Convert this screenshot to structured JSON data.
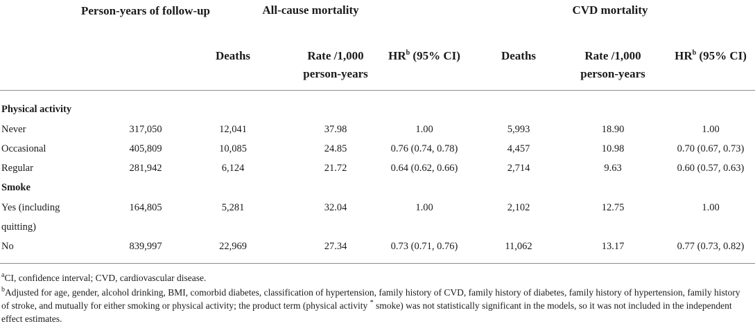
{
  "headers": {
    "person_years": "Person-years of follow-up",
    "all_cause": "All-cause mortality",
    "cvd": "CVD mortality",
    "deaths": "Deaths",
    "rate": "Rate /1,000 person-years",
    "hr": "HR",
    "hr_sup": "b",
    "hr_ci": " (95% CI)"
  },
  "sections": [
    {
      "title": "Physical activity",
      "rows": [
        {
          "label": "Never",
          "py": "317,050",
          "ac_deaths": "12,041",
          "ac_rate": "37.98",
          "ac_hr": "1.00",
          "cvd_deaths": "5,993",
          "cvd_rate": "18.90",
          "cvd_hr": "1.00"
        },
        {
          "label": "Occasional",
          "py": "405,809",
          "ac_deaths": "10,085",
          "ac_rate": "24.85",
          "ac_hr": "0.76 (0.74, 0.78)",
          "cvd_deaths": "4,457",
          "cvd_rate": "10.98",
          "cvd_hr": "0.70 (0.67, 0.73)"
        },
        {
          "label": "Regular",
          "py": "281,942",
          "ac_deaths": "6,124",
          "ac_rate": "21.72",
          "ac_hr": "0.64 (0.62, 0.66)",
          "cvd_deaths": "2,714",
          "cvd_rate": "9.63",
          "cvd_hr": "0.60 (0.57, 0.63)"
        }
      ]
    },
    {
      "title": "Smoke",
      "rows": [
        {
          "label": "Yes (including",
          "label2": "quitting)",
          "py": "164,805",
          "ac_deaths": "5,281",
          "ac_rate": "32.04",
          "ac_hr": "1.00",
          "cvd_deaths": "2,102",
          "cvd_rate": "12.75",
          "cvd_hr": "1.00"
        },
        {
          "label": "No",
          "py": "839,997",
          "ac_deaths": "22,969",
          "ac_rate": "27.34",
          "ac_hr": "0.73 (0.71, 0.76)",
          "cvd_deaths": "11,062",
          "cvd_rate": "13.17",
          "cvd_hr": "0.77 (0.73, 0.82)"
        }
      ]
    }
  ],
  "footnotes": {
    "a_mark": "a",
    "a_text": "CI, confidence interval; CVD, cardiovascular disease.",
    "b_mark": "b",
    "b_text_1": "Adjusted for age, gender, alcohol drinking, BMI, comorbid diabetes, classification of hypertension, family history of CVD, family history of diabetes, family history of hypertension, family history of stroke, and mutually for either smoking or physical activity; the product term (physical activity ",
    "b_star": "*",
    "b_text_2": " smoke) was not statistically significant in the models, so it was not included in the independent effect estimates."
  }
}
